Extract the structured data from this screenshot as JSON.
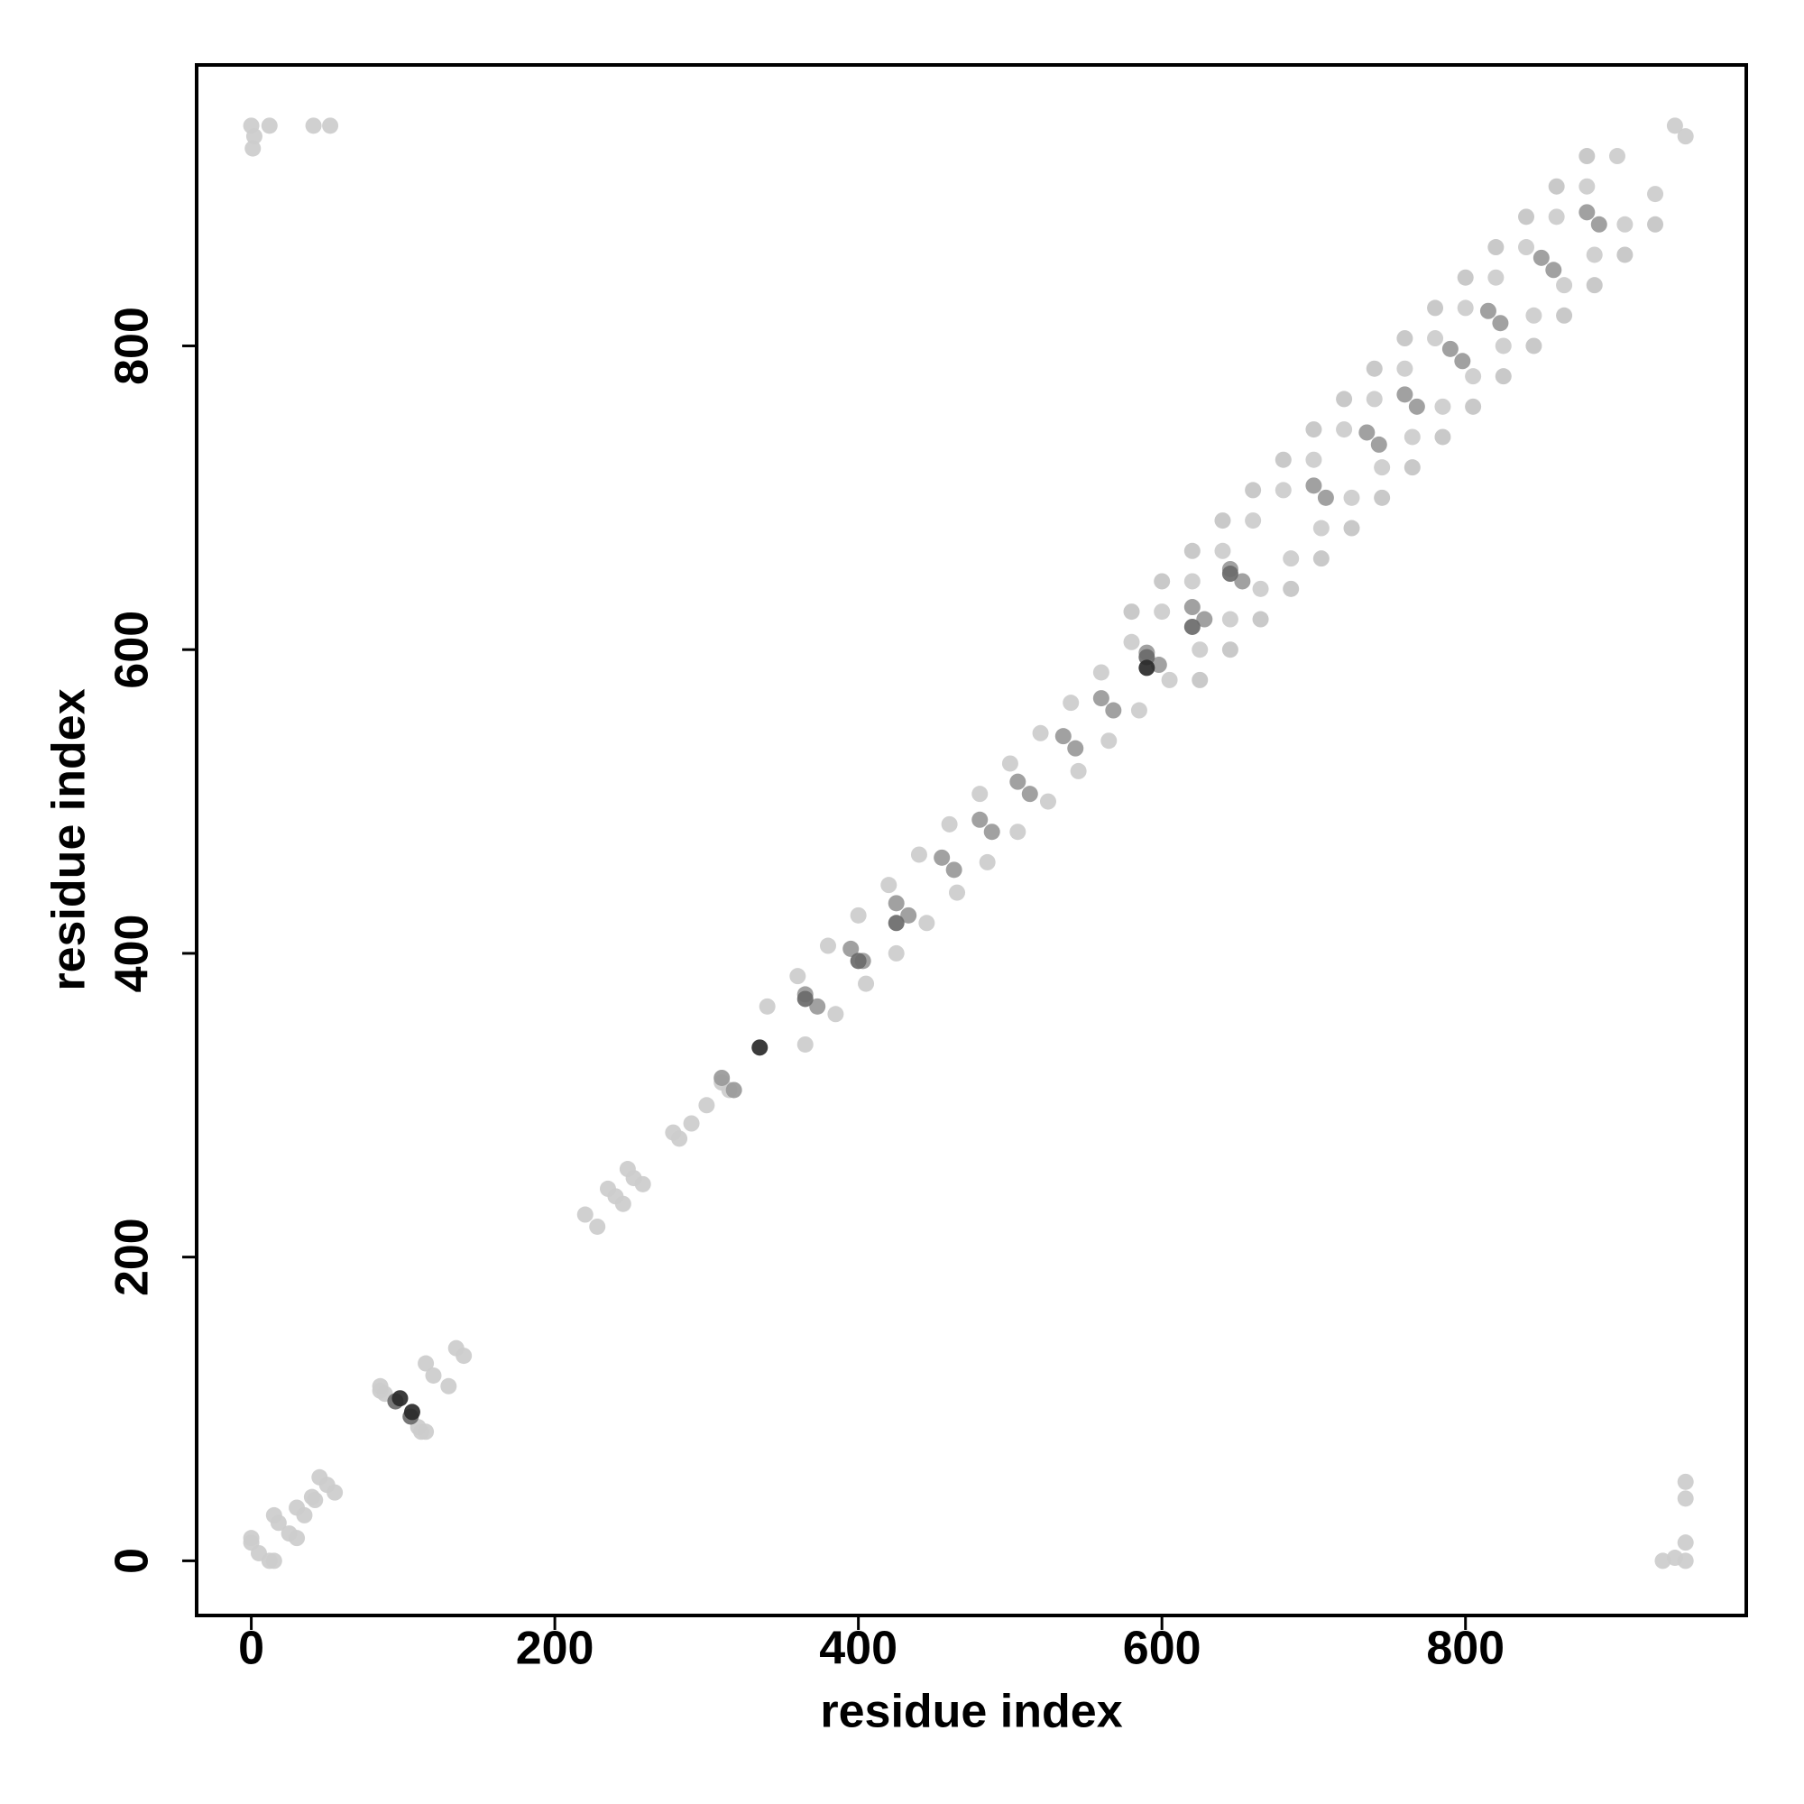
{
  "chart_data": {
    "type": "scatter",
    "x_label": "residue index",
    "y_label": "residue index",
    "xlim": [
      -36,
      985
    ],
    "ylim": [
      -36,
      985
    ],
    "xticks": [
      0,
      200,
      400,
      600,
      800
    ],
    "yticks": [
      0,
      200,
      400,
      600,
      800
    ],
    "series": [
      {
        "color": "#cccccc",
        "x": [
          0,
          2,
          1,
          12,
          41,
          52,
          945,
          938,
          930,
          945,
          945,
          945,
          938,
          945,
          0,
          12,
          5,
          15,
          0,
          18,
          25,
          30,
          15,
          35,
          30,
          40,
          42,
          50,
          55,
          45,
          85,
          112,
          88,
          110,
          115,
          85,
          115,
          130,
          120,
          135,
          140,
          220,
          228,
          240,
          245,
          235,
          252,
          258,
          248,
          278,
          282,
          290,
          300,
          310,
          315
        ],
        "values": [
          945,
          938,
          930,
          945,
          945,
          945,
          0,
          2,
          0,
          12,
          41,
          52,
          945,
          938,
          12,
          0,
          5,
          0,
          15,
          25,
          18,
          15,
          30,
          30,
          35,
          42,
          40,
          50,
          45,
          55,
          112,
          85,
          110,
          88,
          85,
          115,
          130,
          115,
          122,
          140,
          135,
          228,
          220,
          240,
          235,
          245,
          252,
          248,
          258,
          282,
          278,
          288,
          300,
          315,
          310
        ]
      },
      {
        "color": "#cccccc",
        "x": [
          340,
          360,
          380,
          400,
          420,
          440,
          460,
          480,
          500,
          520,
          540,
          560,
          580,
          600,
          620,
          640,
          660,
          680,
          700,
          720,
          740,
          760,
          780,
          800,
          820,
          840,
          860,
          880,
          900
        ],
        "values": [
          365,
          385,
          405,
          425,
          445,
          465,
          485,
          505,
          525,
          545,
          565,
          585,
          605,
          625,
          645,
          665,
          685,
          705,
          725,
          745,
          765,
          785,
          805,
          825,
          845,
          865,
          885,
          905,
          925
        ]
      },
      {
        "color": "#cccccc",
        "x": [
          365,
          385,
          405,
          425,
          445,
          465,
          485,
          505,
          525,
          545,
          565,
          585,
          605,
          625,
          645,
          665,
          685,
          705,
          725,
          745,
          765,
          785,
          805,
          825,
          845,
          865,
          885,
          905,
          925
        ],
        "values": [
          340,
          360,
          380,
          400,
          420,
          440,
          460,
          480,
          500,
          520,
          540,
          560,
          580,
          600,
          620,
          640,
          660,
          680,
          700,
          720,
          740,
          760,
          780,
          800,
          820,
          840,
          860,
          880,
          900
        ]
      },
      {
        "color": "#c4c4c4",
        "x": [
          580,
          600,
          620,
          640,
          660,
          680,
          700,
          720,
          740,
          760,
          780,
          800,
          820,
          840,
          860,
          880
        ],
        "values": [
          625,
          645,
          665,
          685,
          705,
          725,
          745,
          765,
          785,
          805,
          825,
          845,
          865,
          885,
          905,
          925
        ]
      },
      {
        "color": "#c4c4c4",
        "x": [
          625,
          645,
          665,
          685,
          705,
          725,
          745,
          765,
          785,
          805,
          825,
          845,
          865,
          885,
          905,
          925
        ],
        "values": [
          580,
          600,
          620,
          640,
          660,
          680,
          700,
          720,
          740,
          760,
          780,
          800,
          820,
          840,
          860,
          880
        ]
      },
      {
        "color": "#999999",
        "x": [
          310,
          318,
          365,
          373,
          395,
          403,
          425,
          433,
          455,
          463,
          480,
          488,
          505,
          513,
          535,
          543,
          560,
          568,
          590,
          598,
          620,
          628,
          645,
          653,
          700,
          708,
          735,
          743,
          760,
          768,
          790,
          798,
          815,
          823,
          850,
          858,
          880,
          888
        ],
        "values": [
          318,
          310,
          373,
          365,
          403,
          395,
          433,
          425,
          463,
          455,
          488,
          480,
          513,
          505,
          543,
          535,
          568,
          560,
          598,
          590,
          628,
          620,
          653,
          645,
          708,
          700,
          743,
          735,
          768,
          760,
          798,
          790,
          823,
          815,
          858,
          850,
          888,
          880
        ]
      },
      {
        "color": "#6a6a6a",
        "x": [
          95,
          105,
          365,
          425,
          590,
          620,
          645,
          400
        ],
        "values": [
          105,
          95,
          370,
          420,
          595,
          615,
          650,
          395
        ]
      },
      {
        "color": "#2a2a2a",
        "x": [
          98,
          106,
          335,
          590
        ],
        "values": [
          107,
          98,
          338,
          588
        ]
      }
    ]
  }
}
